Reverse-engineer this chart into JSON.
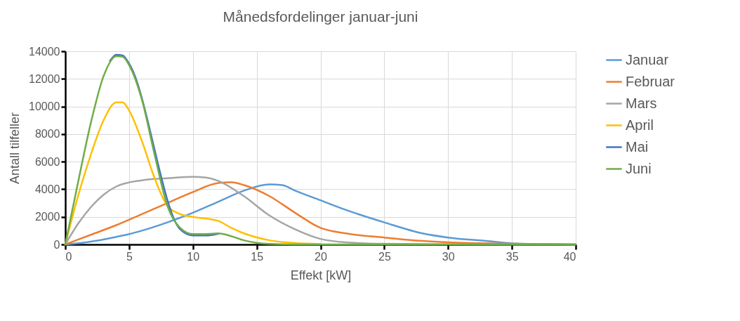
{
  "chart_data": {
    "type": "line",
    "title": "Månedsfordelinger januar-juni",
    "xlabel": "Effekt [kW]",
    "ylabel": "Antall tilfeller",
    "xlim": [
      0,
      40
    ],
    "xticks": [
      0,
      5,
      10,
      15,
      20,
      25,
      30,
      35,
      40
    ],
    "ylim": [
      0,
      14000
    ],
    "yticks": [
      0,
      2000,
      4000,
      6000,
      8000,
      10000,
      12000,
      14000
    ],
    "grid": true,
    "legend": "right",
    "line_style": "solid",
    "marker": "none",
    "series": [
      {
        "name": "Januar",
        "color": "#5b9bd5",
        "x": [
          0,
          2,
          4,
          5,
          6,
          8,
          10,
          12,
          14,
          16,
          17,
          18,
          20,
          22,
          25,
          28,
          30,
          33,
          35,
          38,
          40
        ],
        "values": [
          0,
          200,
          550,
          750,
          1000,
          1600,
          2300,
          3100,
          3900,
          4350,
          4300,
          3900,
          3200,
          2500,
          1600,
          800,
          500,
          250,
          80,
          20,
          0
        ]
      },
      {
        "name": "Februar",
        "color": "#ed7d31",
        "x": [
          0,
          2,
          4,
          6,
          8,
          10,
          12,
          13,
          14,
          16,
          18,
          20,
          22,
          25,
          28,
          30,
          35,
          40
        ],
        "values": [
          0,
          700,
          1400,
          2200,
          3000,
          3800,
          4450,
          4500,
          4300,
          3500,
          2300,
          1200,
          800,
          500,
          250,
          150,
          50,
          0
        ]
      },
      {
        "name": "Mars",
        "color": "#a5a5a5",
        "x": [
          0,
          1,
          2,
          3,
          4,
          6,
          8,
          10,
          11,
          12,
          14,
          16,
          18,
          20,
          22,
          25,
          30,
          40
        ],
        "values": [
          0,
          1500,
          2700,
          3600,
          4200,
          4650,
          4800,
          4900,
          4850,
          4600,
          3500,
          2100,
          1100,
          400,
          150,
          50,
          10,
          0
        ]
      },
      {
        "name": "April",
        "color": "#ffc000",
        "x": [
          0,
          1,
          2,
          3,
          4,
          4.5,
          5,
          6,
          7,
          8,
          9,
          10,
          12,
          13,
          14,
          16,
          18,
          20
        ],
        "values": [
          0,
          3500,
          6500,
          9000,
          10300,
          10300,
          9700,
          7500,
          4800,
          2800,
          2200,
          2000,
          1700,
          1200,
          800,
          300,
          100,
          30
        ]
      },
      {
        "name": "Mai",
        "color": "#4472c4",
        "x": [
          3.5,
          4,
          4.5,
          5,
          9,
          10,
          11,
          12
        ],
        "values": [
          13300,
          13750,
          13700,
          13100,
          1100,
          650,
          650,
          780
        ]
      },
      {
        "name": "Juni",
        "color": "#70ad47",
        "x": [
          0,
          1,
          2,
          3,
          4,
          4.5,
          5,
          6,
          7,
          8,
          9,
          10,
          11,
          12,
          13,
          14,
          15,
          16,
          18,
          40
        ],
        "values": [
          0,
          4500,
          8800,
          12200,
          13650,
          13600,
          13000,
          10500,
          6500,
          2800,
          1200,
          750,
          750,
          800,
          600,
          300,
          120,
          40,
          0,
          0
        ]
      }
    ]
  }
}
